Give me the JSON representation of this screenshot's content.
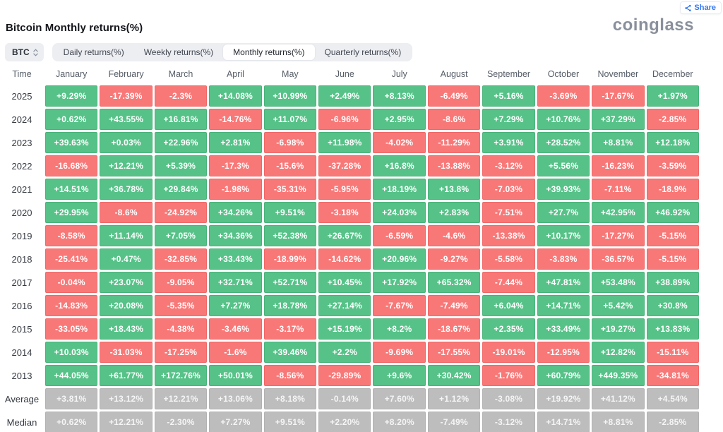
{
  "header": {
    "title": "Bitcoin Monthly returns(%)",
    "logo": "coinglass",
    "share_label": "Share"
  },
  "controls": {
    "coin": "BTC",
    "tabs": [
      {
        "label": "Daily returns(%)",
        "active": false
      },
      {
        "label": "Weekly returns(%)",
        "active": false
      },
      {
        "label": "Monthly returns(%)",
        "active": true
      },
      {
        "label": "Quarterly returns(%)",
        "active": false
      }
    ]
  },
  "colors": {
    "positive": "#56c288",
    "negative": "#f87878",
    "summary": "#bdbdbd",
    "accent_blue": "#3478f7"
  },
  "table": {
    "time_header": "Time",
    "columns": [
      "January",
      "February",
      "March",
      "April",
      "May",
      "June",
      "July",
      "August",
      "September",
      "October",
      "November",
      "December"
    ],
    "rows": [
      {
        "label": "2025",
        "type": "year",
        "values": [
          "+9.29%",
          "-17.39%",
          "-2.3%",
          "+14.08%",
          "+10.99%",
          "+2.49%",
          "+8.13%",
          "-6.49%",
          "+5.16%",
          "-3.69%",
          "-17.67%",
          "+1.97%"
        ]
      },
      {
        "label": "2024",
        "type": "year",
        "values": [
          "+0.62%",
          "+43.55%",
          "+16.81%",
          "-14.76%",
          "+11.07%",
          "-6.96%",
          "+2.95%",
          "-8.6%",
          "+7.29%",
          "+10.76%",
          "+37.29%",
          "-2.85%"
        ]
      },
      {
        "label": "2023",
        "type": "year",
        "values": [
          "+39.63%",
          "+0.03%",
          "+22.96%",
          "+2.81%",
          "-6.98%",
          "+11.98%",
          "-4.02%",
          "-11.29%",
          "+3.91%",
          "+28.52%",
          "+8.81%",
          "+12.18%"
        ]
      },
      {
        "label": "2022",
        "type": "year",
        "values": [
          "-16.68%",
          "+12.21%",
          "+5.39%",
          "-17.3%",
          "-15.6%",
          "-37.28%",
          "+16.8%",
          "-13.88%",
          "-3.12%",
          "+5.56%",
          "-16.23%",
          "-3.59%"
        ]
      },
      {
        "label": "2021",
        "type": "year",
        "values": [
          "+14.51%",
          "+36.78%",
          "+29.84%",
          "-1.98%",
          "-35.31%",
          "-5.95%",
          "+18.19%",
          "+13.8%",
          "-7.03%",
          "+39.93%",
          "-7.11%",
          "-18.9%"
        ]
      },
      {
        "label": "2020",
        "type": "year",
        "values": [
          "+29.95%",
          "-8.6%",
          "-24.92%",
          "+34.26%",
          "+9.51%",
          "-3.18%",
          "+24.03%",
          "+2.83%",
          "-7.51%",
          "+27.7%",
          "+42.95%",
          "+46.92%"
        ]
      },
      {
        "label": "2019",
        "type": "year",
        "values": [
          "-8.58%",
          "+11.14%",
          "+7.05%",
          "+34.36%",
          "+52.38%",
          "+26.67%",
          "-6.59%",
          "-4.6%",
          "-13.38%",
          "+10.17%",
          "-17.27%",
          "-5.15%"
        ]
      },
      {
        "label": "2018",
        "type": "year",
        "values": [
          "-25.41%",
          "+0.47%",
          "-32.85%",
          "+33.43%",
          "-18.99%",
          "-14.62%",
          "+20.96%",
          "-9.27%",
          "-5.58%",
          "-3.83%",
          "-36.57%",
          "-5.15%"
        ]
      },
      {
        "label": "2017",
        "type": "year",
        "values": [
          "-0.04%",
          "+23.07%",
          "-9.05%",
          "+32.71%",
          "+52.71%",
          "+10.45%",
          "+17.92%",
          "+65.32%",
          "-7.44%",
          "+47.81%",
          "+53.48%",
          "+38.89%"
        ]
      },
      {
        "label": "2016",
        "type": "year",
        "values": [
          "-14.83%",
          "+20.08%",
          "-5.35%",
          "+7.27%",
          "+18.78%",
          "+27.14%",
          "-7.67%",
          "-7.49%",
          "+6.04%",
          "+14.71%",
          "+5.42%",
          "+30.8%"
        ]
      },
      {
        "label": "2015",
        "type": "year",
        "values": [
          "-33.05%",
          "+18.43%",
          "-4.38%",
          "-3.46%",
          "-3.17%",
          "+15.19%",
          "+8.2%",
          "-18.67%",
          "+2.35%",
          "+33.49%",
          "+19.27%",
          "+13.83%"
        ]
      },
      {
        "label": "2014",
        "type": "year",
        "values": [
          "+10.03%",
          "-31.03%",
          "-17.25%",
          "-1.6%",
          "+39.46%",
          "+2.2%",
          "-9.69%",
          "-17.55%",
          "-19.01%",
          "-12.95%",
          "+12.82%",
          "-15.11%"
        ]
      },
      {
        "label": "2013",
        "type": "year",
        "values": [
          "+44.05%",
          "+61.77%",
          "+172.76%",
          "+50.01%",
          "-8.56%",
          "-29.89%",
          "+9.6%",
          "+30.42%",
          "-1.76%",
          "+60.79%",
          "+449.35%",
          "-34.81%"
        ]
      },
      {
        "label": "Average",
        "type": "summary",
        "values": [
          "+3.81%",
          "+13.12%",
          "+12.21%",
          "+13.06%",
          "+8.18%",
          "-0.14%",
          "+7.60%",
          "+1.12%",
          "-3.08%",
          "+19.92%",
          "+41.12%",
          "+4.54%"
        ]
      },
      {
        "label": "Median",
        "type": "summary",
        "values": [
          "+0.62%",
          "+12.21%",
          "-2.30%",
          "+7.27%",
          "+9.51%",
          "+2.20%",
          "+8.20%",
          "-7.49%",
          "-3.12%",
          "+14.71%",
          "+8.81%",
          "-2.85%"
        ]
      }
    ]
  }
}
